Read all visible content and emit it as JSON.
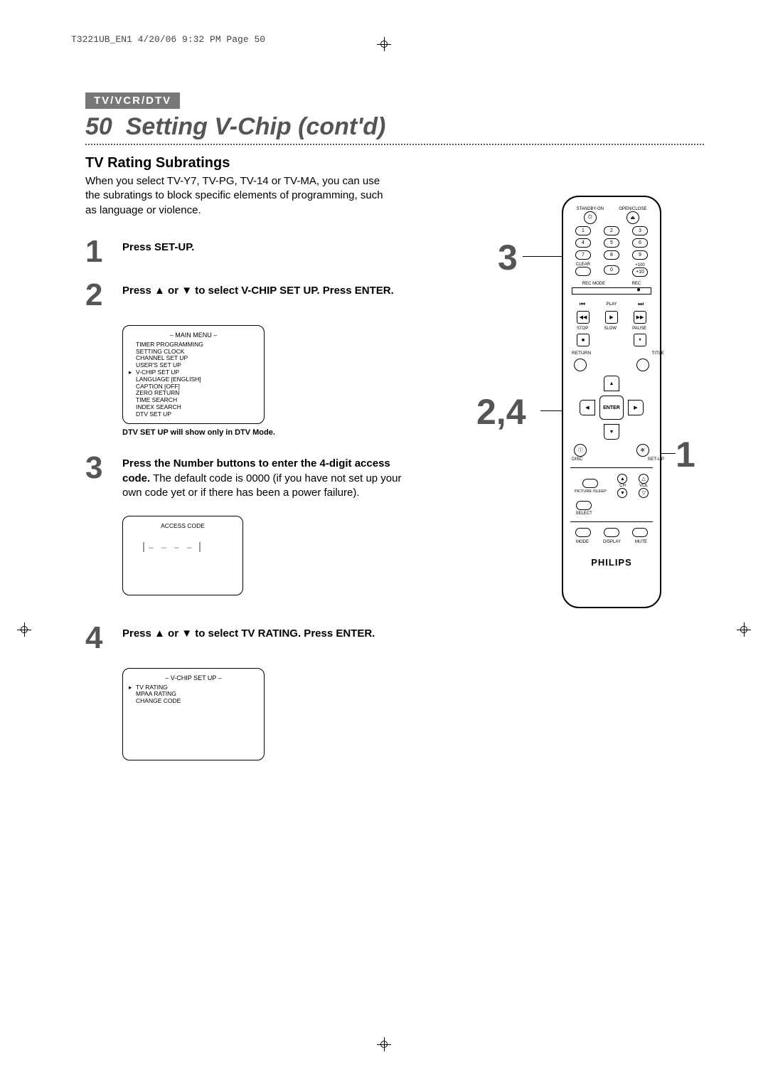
{
  "header_tag": "T3221UB_EN1  4/20/06  9:32 PM  Page 50",
  "section_tag": "TV/VCR/DTV",
  "page_number": "50",
  "page_title": "Setting V-Chip (cont'd)",
  "subtitle": "TV Rating Subratings",
  "intro": "When you select TV-Y7, TV-PG, TV-14 or TV-MA, you can use the subratings to block specific elements of programming, such as language or violence.",
  "steps": [
    {
      "num": "1",
      "body_html": "<b>Press SET-UP.</b>"
    },
    {
      "num": "2",
      "body_html": "<b>Press ▲ or ▼ to select V-CHIP SET UP. Press ENTER.</b>"
    },
    {
      "num": "3",
      "body_html": "<b>Press the Number buttons to enter the 4-digit access code.</b> The default code is 0000 (if you have not set up your own code yet or if there has been a power failure)."
    },
    {
      "num": "4",
      "body_html": "<b>Press ▲ or ▼ to select TV RATING. Press ENTER.</b>"
    }
  ],
  "osd_main_menu": {
    "title": "– MAIN MENU –",
    "items": [
      "TIMER PROGRAMMING",
      "SETTING CLOCK",
      "CHANNEL SET UP",
      "USER'S SET UP",
      "V-CHIP SET UP",
      "LANGUAGE   [ENGLISH]",
      "CAPTION   [OFF]",
      "ZERO RETURN",
      "TIME SEARCH",
      "INDEX SEARCH",
      "DTV SET UP"
    ],
    "selected_index": 4,
    "note": "DTV SET UP will show only in DTV Mode."
  },
  "osd_access": {
    "title": "ACCESS CODE",
    "blanks": "– – – –"
  },
  "osd_vchip": {
    "title": "– V-CHIP SET UP –",
    "items": [
      "TV RATING",
      "MPAA RATING",
      "CHANGE CODE"
    ],
    "selected_index": 0
  },
  "remote": {
    "brand": "PHILIPS",
    "top_left_label": "STANDBY-ON",
    "top_right_label": "OPEN/CLOSE",
    "power_icon": "⏻",
    "eject_icon": "⏏",
    "numbers": [
      "1",
      "2",
      "3",
      "4",
      "5",
      "6",
      "7",
      "8",
      "9"
    ],
    "clear_label": "CLEAR",
    "zero": "0",
    "plus100": "+100",
    "plus10": "+10",
    "rec_mode": "REC MODE",
    "rec": "REC",
    "transport": {
      "prev": "⏮",
      "rew": "◀◀",
      "play_lbl": "PLAY",
      "play": "▶",
      "ff": "▶▶",
      "next": "⏭",
      "stop_lbl": "STOP",
      "slow_lbl": "SLOW",
      "pause_lbl": "PAUSE",
      "stop": "■",
      "pause": "⏸"
    },
    "corner_labels": {
      "return": "RETURN",
      "title": "TITLE",
      "disc": "DISC",
      "setup": "SET-UP"
    },
    "enter": "ENTER",
    "arrows": {
      "up": "▲",
      "down": "▼",
      "left": "◀",
      "right": "▶"
    },
    "info_row": {
      "info": "ⓘ",
      "setup": "✻"
    },
    "vol_row": {
      "picture": "PICTURE /SLEEP",
      "ch": "CH",
      "vol": "VOL",
      "select": "SELECT"
    },
    "bottom_row": {
      "mode": "MODE",
      "display": "DISPLAY",
      "mute": "MUTE"
    }
  },
  "callouts": {
    "c3": "3",
    "c24": "2,4",
    "c1": "1"
  },
  "colors": {
    "tag_bg": "#777777",
    "accent": "#555555",
    "text": "#000000",
    "bg": "#ffffff"
  }
}
